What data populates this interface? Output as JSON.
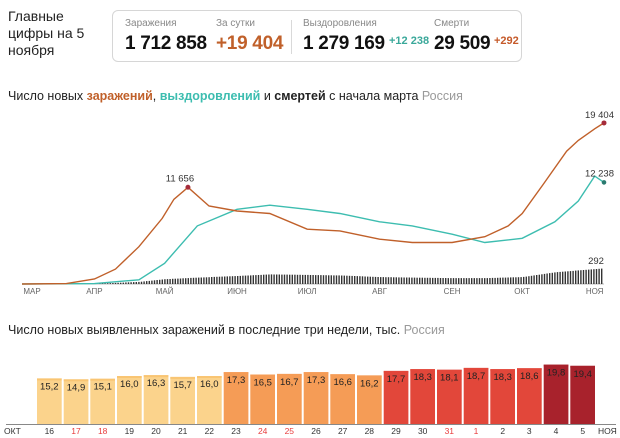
{
  "header": {
    "title": "Главные цифры на 5 ноября",
    "cases_label": "Заражения",
    "cases_value": "1 712 858",
    "daily_label": "За сутки",
    "daily_value": "+19 404",
    "recovered_label": "Выздоровления",
    "recovered_value": "1 279 169",
    "recovered_delta": "+12 238",
    "deaths_label": "Смерти",
    "deaths_value": "29 509",
    "deaths_delta": "+292"
  },
  "chart1_title": {
    "p1": "Число новых ",
    "cases": "заражений",
    "comma": ", ",
    "recovered": "выздоровлений",
    "and": " и ",
    "deaths": "смертей",
    "rest": " с начала марта",
    "region": "Россия"
  },
  "chart2_title": {
    "text": "Число новых выявленных заражений в последние три недели, тыс.",
    "region": "Россия"
  },
  "colors": {
    "cases": "#c0602a",
    "recovered": "#3dbdb0",
    "deaths": "#333333",
    "marker": "#a52b3a",
    "weekend": "#e83c3c"
  },
  "chart_data": [
    {
      "type": "line",
      "x_axis": [
        "МАР",
        "АПР",
        "МАЙ",
        "ИЮН",
        "ИЮЛ",
        "АВГ",
        "СЕН",
        "ОКТ",
        "НОЯ"
      ],
      "series": [
        {
          "name": "заражений",
          "x": [
            "2020-03-01",
            "2020-03-20",
            "2020-04-01",
            "2020-04-10",
            "2020-04-20",
            "2020-04-30",
            "2020-05-05",
            "2020-05-11",
            "2020-05-20",
            "2020-06-01",
            "2020-06-15",
            "2020-07-01",
            "2020-07-15",
            "2020-08-01",
            "2020-08-15",
            "2020-09-01",
            "2020-09-15",
            "2020-09-25",
            "2020-10-01",
            "2020-10-10",
            "2020-10-20",
            "2020-10-25",
            "2020-11-01",
            "2020-11-05"
          ],
          "values": [
            0,
            50,
            600,
            1800,
            4500,
            7900,
            10200,
            11656,
            9400,
            8800,
            8500,
            6600,
            6400,
            5400,
            5000,
            5000,
            5700,
            7000,
            8500,
            12000,
            16000,
            17300,
            18700,
            19404
          ]
        },
        {
          "name": "выздоровлений",
          "x": [
            "2020-03-01",
            "2020-04-01",
            "2020-04-20",
            "2020-05-01",
            "2020-05-15",
            "2020-06-01",
            "2020-06-15",
            "2020-07-01",
            "2020-07-15",
            "2020-08-01",
            "2020-08-15",
            "2020-09-01",
            "2020-09-15",
            "2020-10-01",
            "2020-10-15",
            "2020-10-25",
            "2020-11-01",
            "2020-11-05"
          ],
          "values": [
            0,
            50,
            500,
            2500,
            7000,
            9000,
            9500,
            9000,
            8500,
            7500,
            7000,
            6000,
            5000,
            5500,
            7500,
            10000,
            13000,
            12238
          ]
        },
        {
          "name": "смертей",
          "x": [
            "2020-03-01",
            "2020-04-01",
            "2020-04-20",
            "2020-05-01",
            "2020-05-15",
            "2020-06-01",
            "2020-06-15",
            "2020-07-01",
            "2020-07-15",
            "2020-08-01",
            "2020-08-15",
            "2020-09-01",
            "2020-09-15",
            "2020-10-01",
            "2020-10-15",
            "2020-11-01",
            "2020-11-05"
          ],
          "values": [
            0,
            5,
            40,
            90,
            120,
            150,
            180,
            170,
            160,
            130,
            120,
            110,
            110,
            130,
            220,
            280,
            292
          ]
        }
      ],
      "annotations": [
        "11 656",
        "19 404",
        "12 238",
        "292"
      ]
    },
    {
      "type": "bar",
      "categories": [
        "16",
        "17",
        "18",
        "19",
        "20",
        "21",
        "22",
        "23",
        "24",
        "25",
        "26",
        "27",
        "28",
        "29",
        "30",
        "31",
        "1",
        "2",
        "3",
        "4",
        "5"
      ],
      "values": [
        15.2,
        14.9,
        15.1,
        16.0,
        16.3,
        15.7,
        16.0,
        17.3,
        16.5,
        16.7,
        17.3,
        16.6,
        16.2,
        17.7,
        18.3,
        18.1,
        18.7,
        18.3,
        18.6,
        19.8,
        19.4
      ],
      "value_labels": [
        "15,2",
        "14,9",
        "15,1",
        "16,0",
        "16,3",
        "15,7",
        "16,0",
        "17,3",
        "16,5",
        "16,7",
        "17,3",
        "16,6",
        "16,2",
        "17,7",
        "18,3",
        "18,1",
        "18,7",
        "18,3",
        "18,6",
        "19,8",
        "19,4"
      ],
      "weekend": [
        "17",
        "18",
        "24",
        "25",
        "31",
        "1"
      ],
      "month_labels": [
        "ОКТ",
        "НОЯ"
      ],
      "ylim": [
        0,
        20
      ]
    }
  ]
}
